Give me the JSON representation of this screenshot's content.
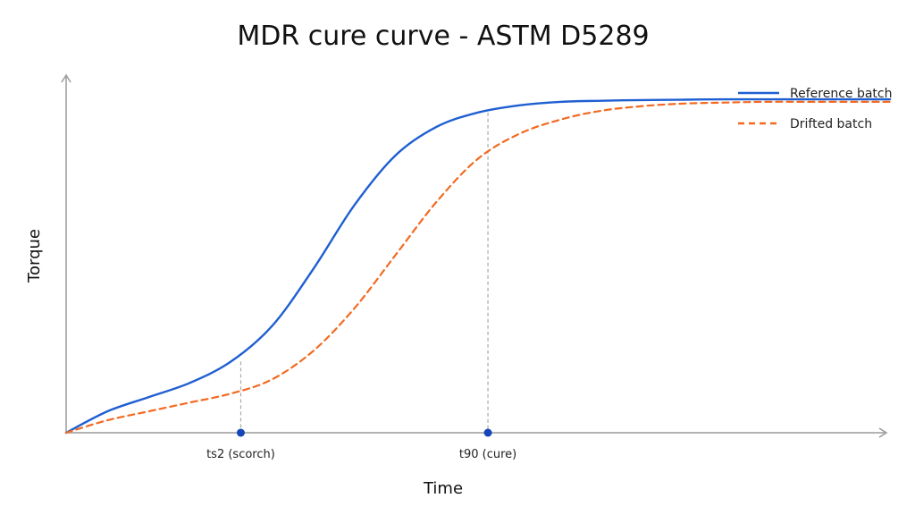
{
  "chart_data": {
    "type": "line",
    "title": "MDR cure curve - ASTM D5289",
    "xlabel": "Time",
    "ylabel": "Torque",
    "x_ticks_shown": false,
    "y_ticks_shown": false,
    "grid": false,
    "xlim": [
      0,
      10
    ],
    "ylim": [
      0,
      10
    ],
    "legend_position": "top-right",
    "x": [
      0,
      0.5,
      1,
      1.5,
      2,
      2.5,
      3,
      3.5,
      4,
      4.5,
      5,
      5.5,
      6,
      6.5,
      7,
      7.5,
      8,
      8.5,
      9,
      9.5,
      10
    ],
    "series": [
      {
        "name": "Reference batch",
        "color": "#1f5fd1",
        "style": "solid",
        "values": [
          0,
          0.6,
          1.0,
          1.4,
          2.0,
          3.0,
          4.6,
          6.4,
          7.8,
          8.6,
          9.0,
          9.2,
          9.3,
          9.33,
          9.35,
          9.36,
          9.37,
          9.37,
          9.37,
          9.37,
          9.37
        ]
      },
      {
        "name": "Drifted batch",
        "color": "#f26a21",
        "style": "dashed",
        "values": [
          0,
          0.35,
          0.6,
          0.85,
          1.1,
          1.5,
          2.3,
          3.5,
          5.0,
          6.5,
          7.7,
          8.4,
          8.8,
          9.05,
          9.18,
          9.25,
          9.28,
          9.3,
          9.3,
          9.3,
          9.3
        ]
      }
    ],
    "markers": [
      {
        "label": "ts2 (scorch)",
        "x": 2.12,
        "y": 2.0
      },
      {
        "label": "t90 (cure)",
        "x": 5.12,
        "y": 9.0
      }
    ]
  }
}
